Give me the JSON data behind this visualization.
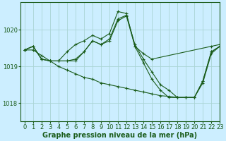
{
  "background_color": "#cceeff",
  "grid_color": "#aad4d4",
  "line_color": "#1a5c1a",
  "marker_color": "#1a5c1a",
  "xlabel": "Graphe pression niveau de la mer (hPa)",
  "xlabel_fontsize": 7,
  "tick_fontsize": 6,
  "xlim": [
    -0.5,
    23
  ],
  "ylim": [
    1017.5,
    1020.75
  ],
  "yticks": [
    1018,
    1019,
    1020
  ],
  "xticks": [
    0,
    1,
    2,
    3,
    4,
    5,
    6,
    7,
    8,
    9,
    10,
    11,
    12,
    13,
    14,
    15,
    16,
    17,
    18,
    19,
    20,
    21,
    22,
    23
  ],
  "series": [
    {
      "x": [
        0,
        1,
        2,
        3,
        4,
        5,
        6,
        7,
        8,
        9,
        10,
        11,
        12,
        13,
        14,
        15,
        22,
        23
      ],
      "y": [
        1019.45,
        1019.55,
        1019.2,
        1019.15,
        1019.15,
        1019.4,
        1019.6,
        1019.7,
        1019.85,
        1019.75,
        1019.9,
        1020.5,
        1020.45,
        1019.55,
        1019.35,
        1019.2,
        1019.55,
        1019.6
      ]
    },
    {
      "x": [
        0,
        1,
        2,
        3,
        4,
        5,
        6,
        7,
        8,
        9,
        10,
        11,
        12,
        13,
        14,
        15,
        16,
        17,
        18,
        19,
        20,
        21,
        22,
        23
      ],
      "y": [
        1019.45,
        1019.55,
        1019.2,
        1019.15,
        1019.15,
        1019.15,
        1019.2,
        1019.4,
        1019.7,
        1019.6,
        1019.75,
        1020.3,
        1020.4,
        1019.6,
        1019.2,
        1018.85,
        1018.5,
        1018.35,
        1018.15,
        1018.15,
        1018.15,
        1018.6,
        1019.4,
        1019.55
      ]
    },
    {
      "x": [
        0,
        1,
        2,
        3,
        4,
        5,
        6,
        7,
        8,
        9,
        10,
        11,
        12,
        13,
        14,
        15,
        16,
        17,
        18,
        19,
        20,
        21,
        22,
        23
      ],
      "y": [
        1019.45,
        1019.55,
        1019.2,
        1019.15,
        1019.15,
        1019.15,
        1019.15,
        1019.4,
        1019.7,
        1019.6,
        1019.7,
        1020.25,
        1020.38,
        1019.55,
        1019.1,
        1018.65,
        1018.35,
        1018.15,
        1018.15,
        1018.15,
        1018.15,
        1018.55,
        1019.35,
        1019.55
      ]
    },
    {
      "x": [
        0,
        1,
        2,
        3,
        4,
        5,
        6,
        7,
        8,
        9,
        10,
        11,
        12,
        13,
        14,
        15,
        16,
        17,
        18,
        19,
        20,
        21,
        22,
        23
      ],
      "y": [
        1019.45,
        1019.45,
        1019.3,
        1019.15,
        1019.0,
        1018.9,
        1018.8,
        1018.7,
        1018.65,
        1018.55,
        1018.5,
        1018.45,
        1018.4,
        1018.35,
        1018.3,
        1018.25,
        1018.2,
        1018.18,
        1018.15,
        1018.15,
        1018.15,
        1018.6,
        1019.4,
        1019.55
      ]
    }
  ]
}
